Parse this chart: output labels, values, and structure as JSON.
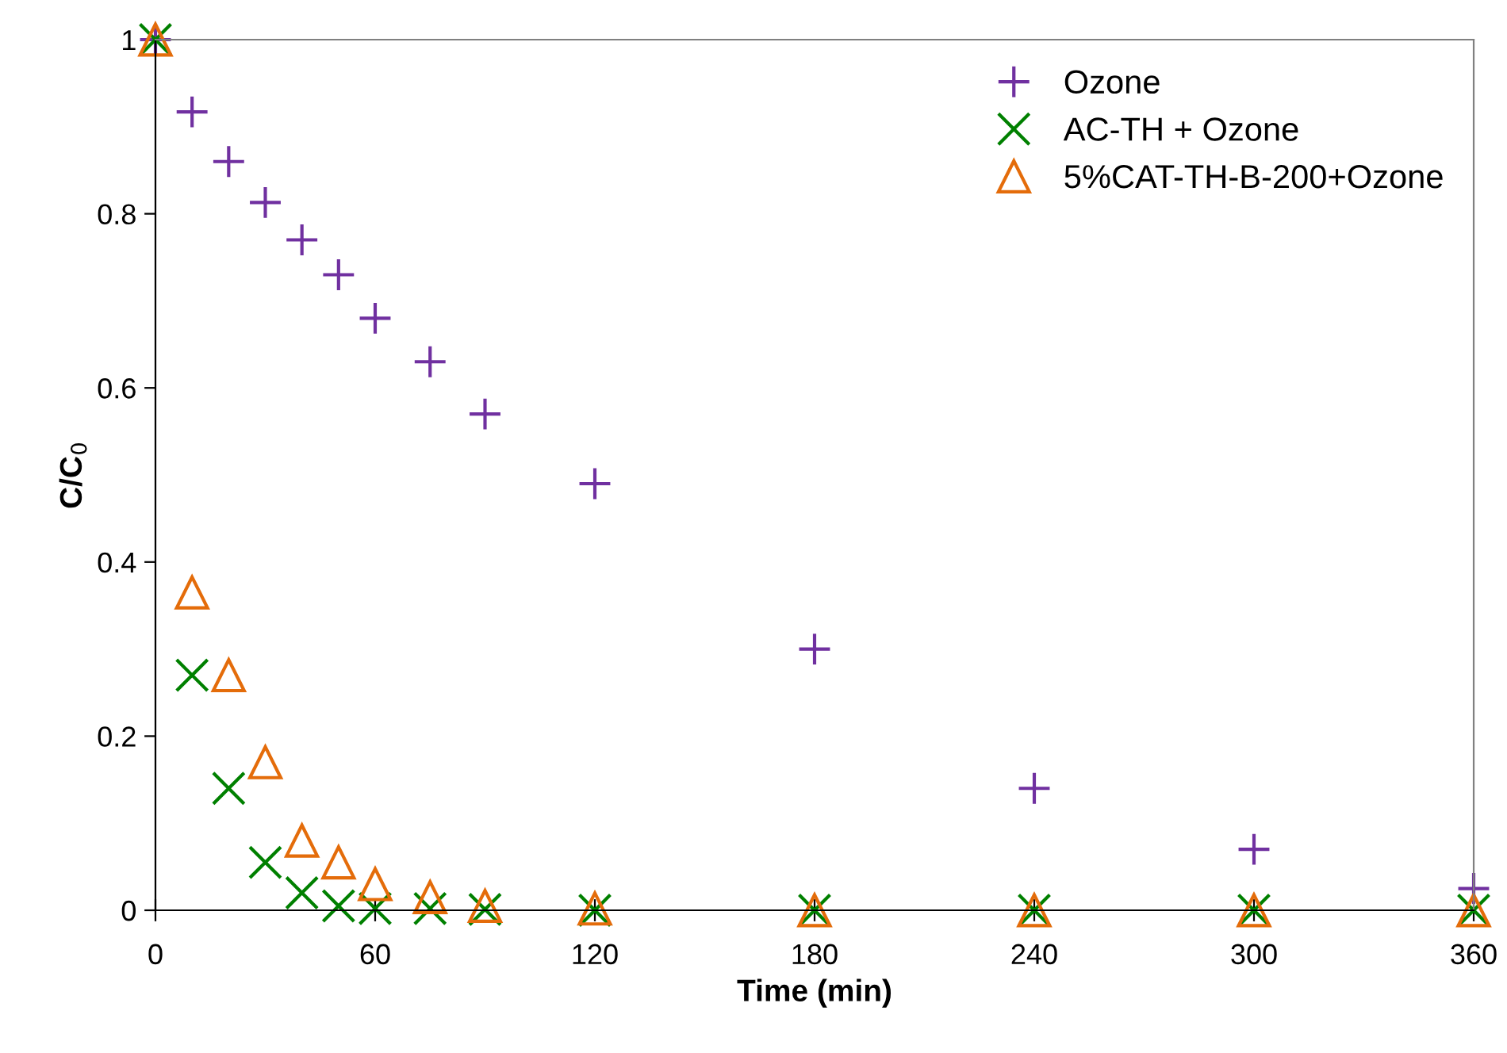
{
  "chart_data": {
    "type": "scatter",
    "xlabel": "Time (min)",
    "ylabel": "C/C$_{0}$",
    "xlim": [
      0,
      360
    ],
    "xticks": [
      0,
      60,
      120,
      180,
      240,
      300,
      360
    ],
    "ylim": [
      0,
      1
    ],
    "yticks": [
      0,
      0.2,
      0.4,
      0.6,
      0.8,
      1
    ],
    "grid": false,
    "legend": "top right",
    "x": [
      0,
      10,
      20,
      30,
      40,
      50,
      60,
      75,
      90,
      120,
      180,
      240,
      300,
      360
    ],
    "series": [
      {
        "name": "Ozone",
        "color": "#7030a0",
        "marker": "plus",
        "values": [
          1,
          0.917,
          0.86,
          0.813,
          0.77,
          0.73,
          0.68,
          0.63,
          0.57,
          0.49,
          0.3,
          0.14,
          0.07,
          0.025
        ]
      },
      {
        "name": "AC-TH + Ozone",
        "color": "#008000",
        "marker": "cross",
        "values": [
          1,
          0.27,
          0.14,
          0.055,
          0.02,
          0.005,
          0.002,
          0.002,
          0.001,
          0,
          0,
          0,
          0,
          0
        ]
      },
      {
        "name": "5%CAT-TH-B-200+Ozone",
        "color": "#e46c0a",
        "marker": "triangle",
        "values": [
          1,
          0.365,
          0.27,
          0.17,
          0.08,
          0.055,
          0.03,
          0.015,
          0.005,
          0.002,
          0,
          0,
          0,
          0
        ]
      }
    ]
  }
}
